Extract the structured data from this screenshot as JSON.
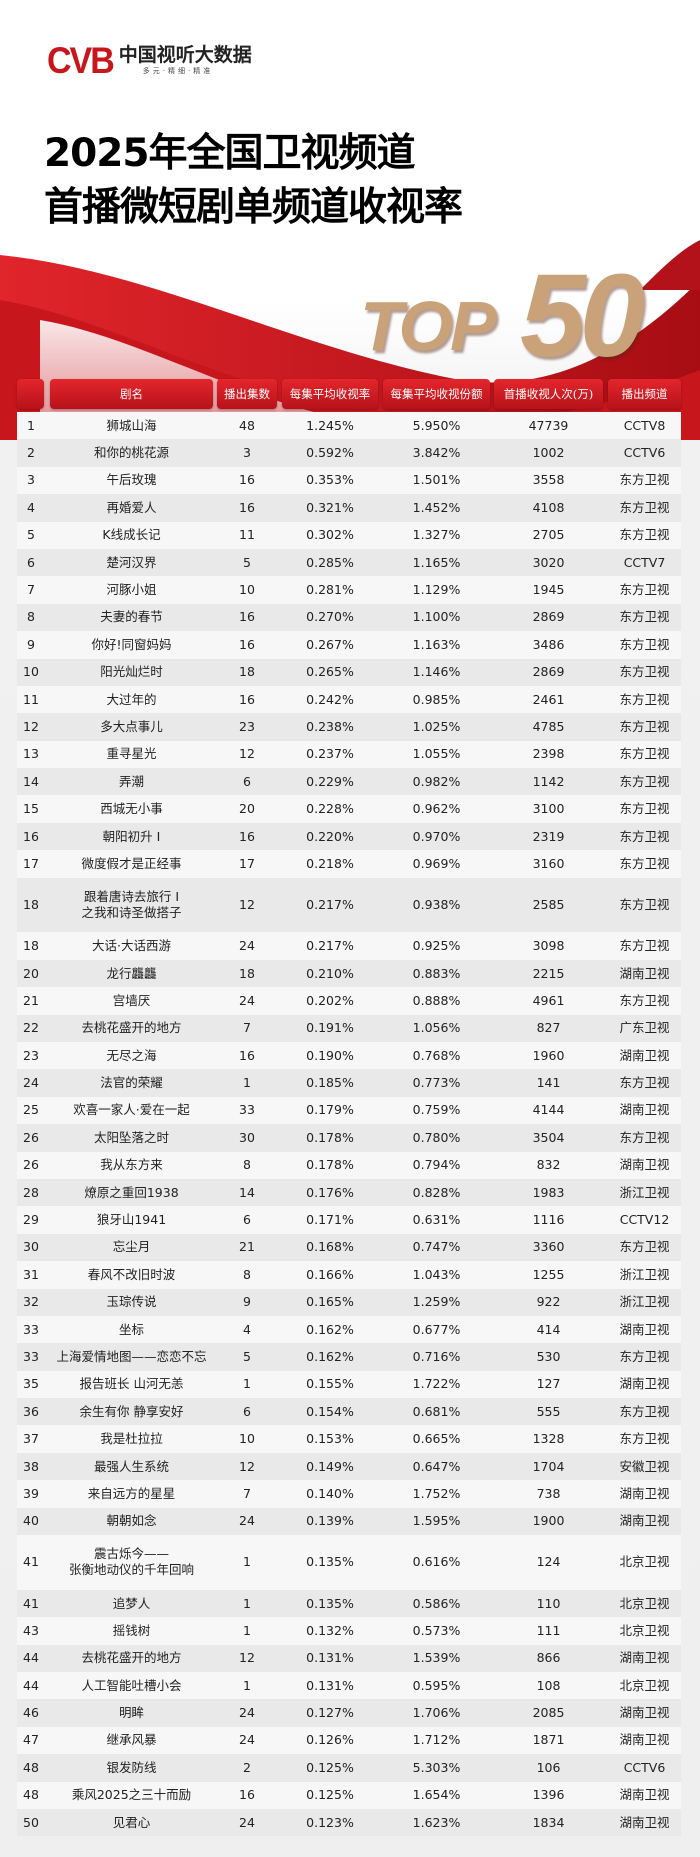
{
  "brand": {
    "logo_mark": "CVB",
    "name": "中国视听大数据",
    "tagline": "多元·精细·精准"
  },
  "title": {
    "line1": "2025年全国卫视频道",
    "line2": "首播微短剧单频道收视率",
    "badge_top": "TOP",
    "badge_num": "50"
  },
  "colors": {
    "accent": "#d81e26",
    "gold": "#c9a27a"
  },
  "table": {
    "headers": [
      "",
      "剧名",
      "播出集数",
      "每集平均收视率",
      "每集平均收视份额",
      "首播收视人次(万)",
      "播出频道"
    ],
    "rows": [
      [
        "1",
        "狮城山海",
        "48",
        "1.245%",
        "5.950%",
        "47739",
        "CCTV8"
      ],
      [
        "2",
        "和你的桃花源",
        "3",
        "0.592%",
        "3.842%",
        "1002",
        "CCTV6"
      ],
      [
        "3",
        "午后玫瑰",
        "16",
        "0.353%",
        "1.501%",
        "3558",
        "东方卫视"
      ],
      [
        "4",
        "再婚爱人",
        "16",
        "0.321%",
        "1.452%",
        "4108",
        "东方卫视"
      ],
      [
        "5",
        "K线成长记",
        "11",
        "0.302%",
        "1.327%",
        "2705",
        "东方卫视"
      ],
      [
        "6",
        "楚河汉界",
        "5",
        "0.285%",
        "1.165%",
        "3020",
        "CCTV7"
      ],
      [
        "7",
        "河豚小姐",
        "10",
        "0.281%",
        "1.129%",
        "1945",
        "东方卫视"
      ],
      [
        "8",
        "夫妻的春节",
        "16",
        "0.270%",
        "1.100%",
        "2869",
        "东方卫视"
      ],
      [
        "9",
        "你好!同窗妈妈",
        "16",
        "0.267%",
        "1.163%",
        "3486",
        "东方卫视"
      ],
      [
        "10",
        "阳光灿烂时",
        "18",
        "0.265%",
        "1.146%",
        "2869",
        "东方卫视"
      ],
      [
        "11",
        "大过年的",
        "16",
        "0.242%",
        "0.985%",
        "2461",
        "东方卫视"
      ],
      [
        "12",
        "多大点事儿",
        "23",
        "0.238%",
        "1.025%",
        "4785",
        "东方卫视"
      ],
      [
        "13",
        "重寻星光",
        "12",
        "0.237%",
        "1.055%",
        "2398",
        "东方卫视"
      ],
      [
        "14",
        "弄潮",
        "6",
        "0.229%",
        "0.982%",
        "1142",
        "东方卫视"
      ],
      [
        "15",
        "西城无小事",
        "20",
        "0.228%",
        "0.962%",
        "3100",
        "东方卫视"
      ],
      [
        "16",
        "朝阳初升 Ⅰ",
        "16",
        "0.220%",
        "0.970%",
        "2319",
        "东方卫视"
      ],
      [
        "17",
        "微度假才是正经事",
        "17",
        "0.218%",
        "0.969%",
        "3160",
        "东方卫视"
      ],
      [
        "18",
        "跟着唐诗去旅行 Ⅰ\n之我和诗圣做搭子",
        "12",
        "0.217%",
        "0.938%",
        "2585",
        "东方卫视"
      ],
      [
        "18",
        "大话·大话西游",
        "24",
        "0.217%",
        "0.925%",
        "3098",
        "东方卫视"
      ],
      [
        "20",
        "龙行龘龘",
        "18",
        "0.210%",
        "0.883%",
        "2215",
        "湖南卫视"
      ],
      [
        "21",
        "宫墙厌",
        "24",
        "0.202%",
        "0.888%",
        "4961",
        "东方卫视"
      ],
      [
        "22",
        "去桃花盛开的地方",
        "7",
        "0.191%",
        "1.056%",
        "827",
        "广东卫视"
      ],
      [
        "23",
        "无尽之海",
        "16",
        "0.190%",
        "0.768%",
        "1960",
        "湖南卫视"
      ],
      [
        "24",
        "法官的荣耀",
        "1",
        "0.185%",
        "0.773%",
        "141",
        "东方卫视"
      ],
      [
        "25",
        "欢喜一家人·爱在一起",
        "33",
        "0.179%",
        "0.759%",
        "4144",
        "湖南卫视"
      ],
      [
        "26",
        "太阳坠落之时",
        "30",
        "0.178%",
        "0.780%",
        "3504",
        "东方卫视"
      ],
      [
        "26",
        "我从东方来",
        "8",
        "0.178%",
        "0.794%",
        "832",
        "湖南卫视"
      ],
      [
        "28",
        "燎原之重回1938",
        "14",
        "0.176%",
        "0.828%",
        "1983",
        "浙江卫视"
      ],
      [
        "29",
        "狼牙山1941",
        "6",
        "0.171%",
        "0.631%",
        "1116",
        "CCTV12"
      ],
      [
        "30",
        "忘尘月",
        "21",
        "0.168%",
        "0.747%",
        "3360",
        "东方卫视"
      ],
      [
        "31",
        "春风不改旧时波",
        "8",
        "0.166%",
        "1.043%",
        "1255",
        "浙江卫视"
      ],
      [
        "32",
        "玉琮传说",
        "9",
        "0.165%",
        "1.259%",
        "922",
        "浙江卫视"
      ],
      [
        "33",
        "坐标",
        "4",
        "0.162%",
        "0.677%",
        "414",
        "湖南卫视"
      ],
      [
        "33",
        "上海爱情地图——恋恋不忘",
        "5",
        "0.162%",
        "0.716%",
        "530",
        "东方卫视"
      ],
      [
        "35",
        "报告班长 山河无恙",
        "1",
        "0.155%",
        "1.722%",
        "127",
        "湖南卫视"
      ],
      [
        "36",
        "余生有你 静享安好",
        "6",
        "0.154%",
        "0.681%",
        "555",
        "东方卫视"
      ],
      [
        "37",
        "我是杜拉拉",
        "10",
        "0.153%",
        "0.665%",
        "1328",
        "东方卫视"
      ],
      [
        "38",
        "最强人生系统",
        "12",
        "0.149%",
        "0.647%",
        "1704",
        "安徽卫视"
      ],
      [
        "39",
        "来自远方的星星",
        "7",
        "0.140%",
        "1.752%",
        "738",
        "湖南卫视"
      ],
      [
        "40",
        "朝朝如念",
        "24",
        "0.139%",
        "1.595%",
        "1900",
        "湖南卫视"
      ],
      [
        "41",
        "震古烁今——\n张衡地动仪的千年回响",
        "1",
        "0.135%",
        "0.616%",
        "124",
        "北京卫视"
      ],
      [
        "41",
        "追梦人",
        "1",
        "0.135%",
        "0.586%",
        "110",
        "北京卫视"
      ],
      [
        "43",
        "摇钱树",
        "1",
        "0.132%",
        "0.573%",
        "111",
        "北京卫视"
      ],
      [
        "44",
        "去桃花盛开的地方",
        "12",
        "0.131%",
        "1.539%",
        "866",
        "湖南卫视"
      ],
      [
        "44",
        "人工智能吐槽小会",
        "1",
        "0.131%",
        "0.595%",
        "108",
        "北京卫视"
      ],
      [
        "46",
        "明眸",
        "24",
        "0.127%",
        "1.706%",
        "2085",
        "湖南卫视"
      ],
      [
        "47",
        "继承风暴",
        "24",
        "0.126%",
        "1.712%",
        "1871",
        "湖南卫视"
      ],
      [
        "48",
        "银发防线",
        "2",
        "0.125%",
        "5.303%",
        "106",
        "CCTV6"
      ],
      [
        "48",
        "乘风2025之三十而励",
        "16",
        "0.125%",
        "1.654%",
        "1396",
        "湖南卫视"
      ],
      [
        "50",
        "见君心",
        "24",
        "0.123%",
        "1.623%",
        "1834",
        "湖南卫视"
      ]
    ]
  }
}
